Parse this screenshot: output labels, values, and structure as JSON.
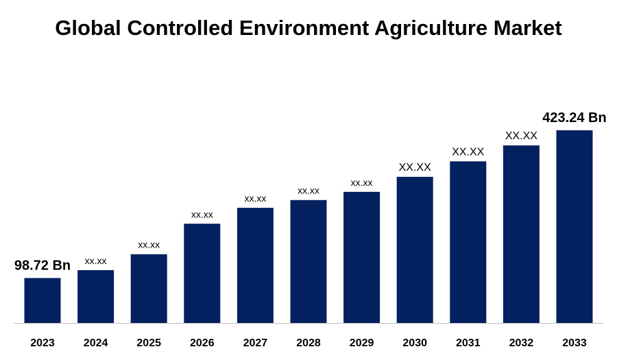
{
  "chart_data": {
    "type": "bar",
    "title": "Global Controlled Environment Agriculture Market",
    "categories": [
      "2023",
      "2024",
      "2025",
      "2026",
      "2027",
      "2028",
      "2029",
      "2030",
      "2031",
      "2032",
      "2033"
    ],
    "values": [
      98.72,
      116,
      151,
      218,
      253,
      270,
      288,
      321,
      355,
      390,
      423.24
    ],
    "data_labels": [
      "98.72 Bn",
      "xx.xx",
      "xx.xx",
      "xx.xx",
      "xx.xx",
      "xx.xx",
      "xx.xx",
      "XX.XX",
      "XX.XX",
      "XX.XX",
      "423.24 Bn"
    ],
    "xlabel": "",
    "ylabel": "",
    "ylim": [
      0,
      423.24
    ],
    "grid": false,
    "bar_color": "#03215F"
  }
}
